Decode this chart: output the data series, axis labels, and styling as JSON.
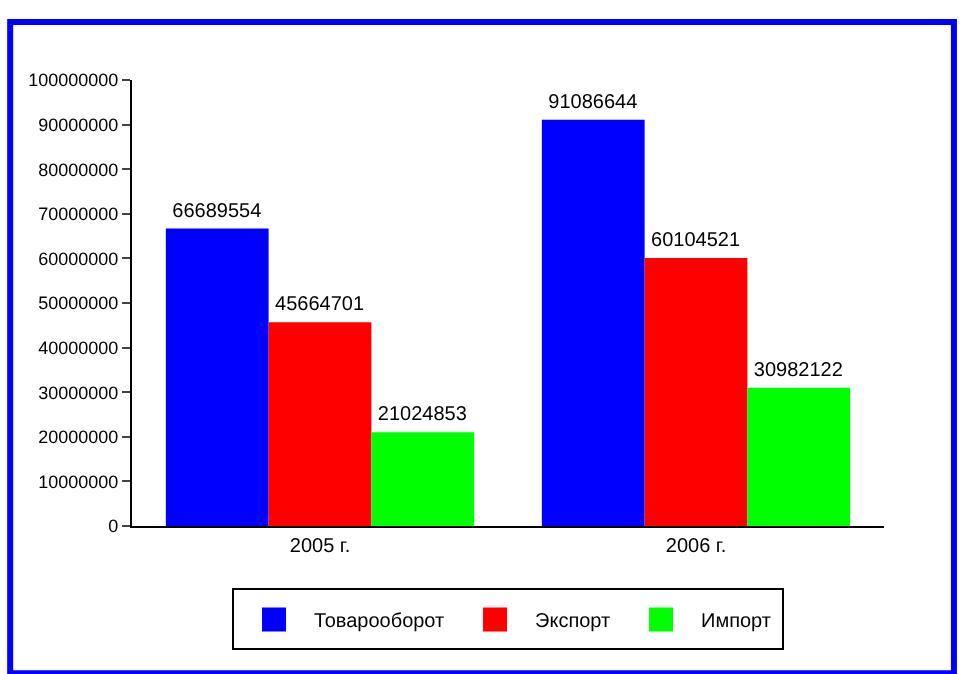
{
  "chart_data": {
    "type": "bar",
    "categories": [
      "2005 г.",
      "2006 г."
    ],
    "series": [
      {
        "name": "Товарооборот",
        "color": "#0000ff",
        "values": [
          66689554,
          91086644
        ]
      },
      {
        "name": "Экспорт",
        "color": "#ff0000",
        "values": [
          45664701,
          60104521
        ]
      },
      {
        "name": "Импорт",
        "color": "#00ff00",
        "values": [
          21024853,
          30982122
        ]
      }
    ],
    "ylim": [
      0,
      100000000
    ],
    "yticks": [
      0,
      10000000,
      20000000,
      30000000,
      40000000,
      50000000,
      60000000,
      70000000,
      80000000,
      90000000,
      100000000
    ],
    "data_labels": true,
    "grid": false,
    "legend": "bottom"
  }
}
